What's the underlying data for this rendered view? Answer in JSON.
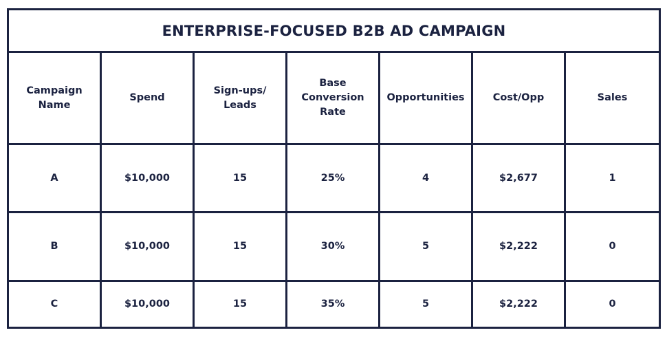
{
  "table": {
    "title": "ENTERPRISE-FOCUSED B2B AD CAMPAIGN",
    "headers": [
      [
        "Campaign",
        "Name"
      ],
      [
        "Spend"
      ],
      [
        "Sign-ups/",
        "Leads"
      ],
      [
        "Base",
        "Conversion",
        "Rate"
      ],
      [
        "Opportunities"
      ],
      [
        "Cost/Opp"
      ],
      [
        "Sales"
      ]
    ],
    "rows": [
      [
        "A",
        "$10,000",
        "15",
        "25%",
        "4",
        "$2,677",
        "1"
      ],
      [
        "B",
        "$10,000",
        "15",
        "30%",
        "5",
        "$2,222",
        "0"
      ],
      [
        "C",
        "$10,000",
        "15",
        "35%",
        "5",
        "$2,222",
        "0"
      ]
    ]
  },
  "colors": {
    "border": "#1b2240",
    "text": "#1b2240",
    "background": "#ffffff"
  }
}
